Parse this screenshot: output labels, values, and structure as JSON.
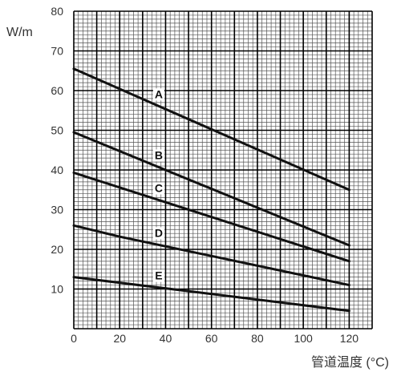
{
  "chart_data": {
    "type": "line",
    "title": "",
    "xlabel": "管道温度 (°C)",
    "ylabel": "W/m",
    "xlim": [
      0,
      130
    ],
    "ylim": [
      0,
      80
    ],
    "x_ticks": [
      "0",
      "20",
      "40",
      "60",
      "80",
      "100",
      "120"
    ],
    "y_ticks": [
      "10",
      "20",
      "30",
      "40",
      "50",
      "60",
      "70",
      "80"
    ],
    "grid": true,
    "series": [
      {
        "name": "A",
        "x": [
          0,
          120
        ],
        "y": [
          65.5,
          35
        ]
      },
      {
        "name": "B",
        "x": [
          0,
          120
        ],
        "y": [
          49.5,
          21
        ]
      },
      {
        "name": "C",
        "x": [
          0,
          120
        ],
        "y": [
          39.3,
          17
        ]
      },
      {
        "name": "D",
        "x": [
          0,
          20,
          120
        ],
        "y": [
          26,
          23.2,
          11
        ]
      },
      {
        "name": "E",
        "x": [
          0,
          120
        ],
        "y": [
          13,
          4.5
        ]
      }
    ]
  }
}
